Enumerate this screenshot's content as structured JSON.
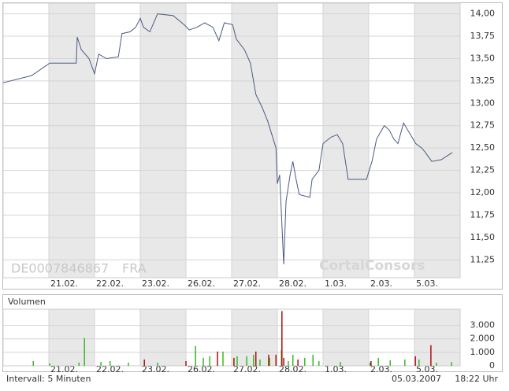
{
  "symbol": "DE0007846867",
  "exchange": "FRA",
  "watermark": "CortalConsors",
  "footer": {
    "interval": "Intervall: 5 Minuten",
    "date": "05.03.2007",
    "time": "18:22 Uhr"
  },
  "chart_data": [
    {
      "type": "line",
      "color": "#4a5a80",
      "grid": true,
      "xlim": [
        0,
        10
      ],
      "ylim": [
        11.05,
        14.12
      ],
      "xticks": [
        {
          "value": 1,
          "label": "21.02."
        },
        {
          "value": 2,
          "label": "22.02."
        },
        {
          "value": 3,
          "label": "23.02."
        },
        {
          "value": 4,
          "label": "26.02."
        },
        {
          "value": 5,
          "label": "27.02."
        },
        {
          "value": 6,
          "label": "28.02."
        },
        {
          "value": 7,
          "label": "1.03."
        },
        {
          "value": 8,
          "label": "2.03."
        },
        {
          "value": 9,
          "label": "5.03."
        }
      ],
      "yticks": [
        {
          "value": 11.25,
          "label": "11,25"
        },
        {
          "value": 11.5,
          "label": "11,50"
        },
        {
          "value": 11.75,
          "label": "11,75"
        },
        {
          "value": 12,
          "label": "12,00"
        },
        {
          "value": 12.25,
          "label": "12,25"
        },
        {
          "value": 12.5,
          "label": "12,50"
        },
        {
          "value": 12.75,
          "label": "12,75"
        },
        {
          "value": 13,
          "label": "13,00"
        },
        {
          "value": 13.25,
          "label": "13,25"
        },
        {
          "value": 13.5,
          "label": "13,50"
        },
        {
          "value": 13.75,
          "label": "13,75"
        },
        {
          "value": 14,
          "label": "14,00"
        }
      ],
      "x": [
        0,
        0.62,
        1.02,
        1.6,
        1.62,
        1.71,
        1.88,
        2.0,
        2.09,
        2.26,
        2.52,
        2.6,
        2.78,
        2.9,
        3.0,
        3.07,
        3.21,
        3.38,
        3.72,
        3.98,
        4.07,
        4.24,
        4.41,
        4.59,
        4.72,
        4.84,
        5.02,
        5.1,
        5.28,
        5.41,
        5.53,
        5.67,
        5.79,
        5.88,
        5.97,
        6.0,
        6.05,
        6.14,
        6.19,
        6.28,
        6.34,
        6.41,
        6.48,
        6.71,
        6.76,
        6.91,
        7.0,
        7.17,
        7.31,
        7.43,
        7.55,
        7.95,
        8.07,
        8.17,
        8.34,
        8.45,
        8.55,
        8.64,
        8.76,
        9.03,
        9.16,
        9.24,
        9.38,
        9.59,
        9.83
      ],
      "values": [
        13.23,
        13.31,
        13.45,
        13.45,
        13.74,
        13.6,
        13.5,
        13.33,
        13.55,
        13.5,
        13.52,
        13.78,
        13.8,
        13.85,
        13.95,
        13.85,
        13.8,
        14.0,
        13.98,
        13.87,
        13.82,
        13.85,
        13.9,
        13.85,
        13.7,
        13.9,
        13.88,
        13.72,
        13.6,
        13.45,
        13.1,
        12.95,
        12.8,
        12.65,
        12.5,
        12.1,
        12.2,
        11.2,
        11.9,
        12.2,
        12.35,
        12.15,
        11.98,
        11.95,
        12.15,
        12.25,
        12.55,
        12.62,
        12.65,
        12.55,
        12.15,
        12.15,
        12.35,
        12.6,
        12.75,
        12.7,
        12.6,
        12.55,
        12.78,
        12.55,
        12.5,
        12.45,
        12.35,
        12.37,
        12.45
      ]
    },
    {
      "type": "bar",
      "title": "Volumen",
      "xlim": [
        0,
        10
      ],
      "ylim": [
        0,
        4200
      ],
      "xticks": [
        {
          "value": 1,
          "label": "21.02."
        },
        {
          "value": 2,
          "label": "22.02."
        },
        {
          "value": 3,
          "label": "23.02."
        },
        {
          "value": 4,
          "label": "26.02."
        },
        {
          "value": 5,
          "label": "27.02."
        },
        {
          "value": 6,
          "label": "28.02."
        },
        {
          "value": 7,
          "label": "1.03."
        },
        {
          "value": 8,
          "label": "2.03."
        },
        {
          "value": 9,
          "label": "5.03."
        }
      ],
      "yticks": [
        0,
        {
          "value": 1000,
          "label": "1.000"
        },
        {
          "value": 2000,
          "label": "2.000"
        },
        {
          "value": 3000,
          "label": "3.000"
        }
      ],
      "series": [
        {
          "color": "#33bb22",
          "x": [
            0.66,
            1.02,
            1.66,
            1.78,
            2.14,
            2.34,
            2.74,
            3.38,
            4.21,
            4.38,
            4.52,
            4.81,
            5.12,
            5.33,
            5.48,
            5.62,
            5.83,
            6.09,
            6.24,
            6.34,
            6.6,
            6.78,
            6.91,
            7.38,
            8.03,
            8.21,
            8.47,
            8.79,
            9.1,
            9.48,
            9.81
          ],
          "values": [
            350,
            180,
            240,
            2060,
            290,
            350,
            240,
            240,
            1470,
            590,
            710,
            1060,
            710,
            710,
            820,
            470,
            590,
            1180,
            350,
            820,
            590,
            820,
            350,
            290,
            240,
            590,
            410,
            470,
            470,
            240,
            290
          ]
        },
        {
          "color": "#aa1111",
          "x": [
            3.09,
            4.0,
            4.69,
            5.05,
            5.53,
            5.81,
            5.97,
            6.1,
            6.14,
            6.45,
            8.05,
            9.02,
            9.36
          ],
          "values": [
            470,
            350,
            1060,
            590,
            1060,
            820,
            820,
            4060,
            590,
            470,
            350,
            710,
            1530
          ]
        }
      ]
    }
  ]
}
